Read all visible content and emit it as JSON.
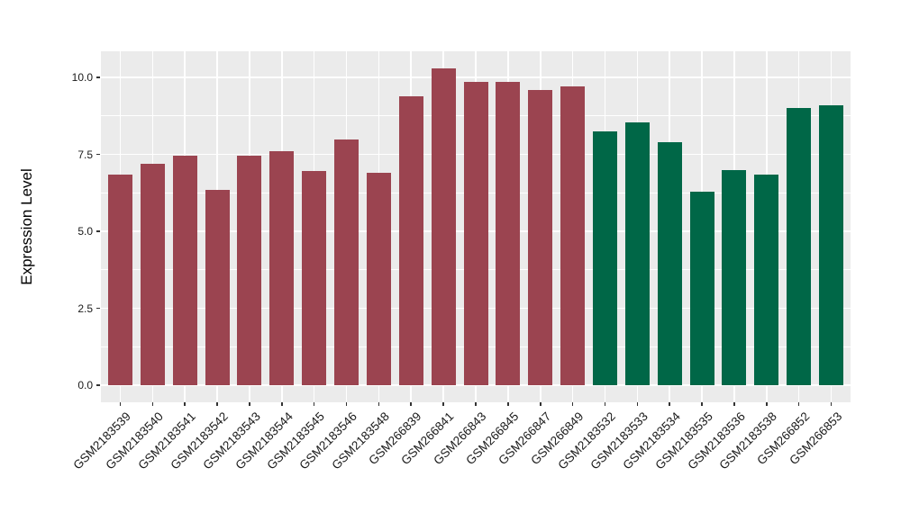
{
  "chart_data": {
    "type": "bar",
    "title": "",
    "xlabel": "",
    "ylabel": "Expression Level",
    "ylim": [
      -0.55,
      10.85
    ],
    "yticks": [
      0.0,
      2.5,
      5.0,
      7.5,
      10.0
    ],
    "ytick_labels": [
      "0.0",
      "2.5",
      "5.0",
      "7.5",
      "10.0"
    ],
    "yticks_minor": [
      1.25,
      3.75,
      6.25,
      8.75
    ],
    "grid": "major-and-minor-horizontal, major-vertical-at-category-centers",
    "legend": "none",
    "categories": [
      "GSM2183539",
      "GSM2183540",
      "GSM2183541",
      "GSM2183542",
      "GSM2183543",
      "GSM2183544",
      "GSM2183545",
      "GSM2183546",
      "GSM2183548",
      "GSM266839",
      "GSM266841",
      "GSM266843",
      "GSM266845",
      "GSM266847",
      "GSM266849",
      "GSM2183532",
      "GSM2183533",
      "GSM2183534",
      "GSM2183535",
      "GSM2183536",
      "GSM2183538",
      "GSM266852",
      "GSM266853"
    ],
    "values": [
      6.85,
      7.2,
      7.45,
      6.35,
      7.45,
      7.6,
      6.95,
      8.0,
      6.9,
      9.4,
      10.3,
      9.85,
      9.85,
      9.6,
      9.7,
      8.25,
      8.55,
      7.9,
      6.3,
      7.0,
      6.85,
      9.0,
      9.1
    ],
    "bar_groups": [
      "red",
      "red",
      "red",
      "red",
      "red",
      "red",
      "red",
      "red",
      "red",
      "red",
      "red",
      "red",
      "red",
      "red",
      "red",
      "green",
      "green",
      "green",
      "green",
      "green",
      "green",
      "green",
      "green"
    ],
    "colors": {
      "red": "#9B4450",
      "green": "#006747",
      "panel_background": "#EBEBEB",
      "gridline": "#FFFFFF",
      "tick_mark": "#333333",
      "text": "#1a1a1a"
    }
  }
}
